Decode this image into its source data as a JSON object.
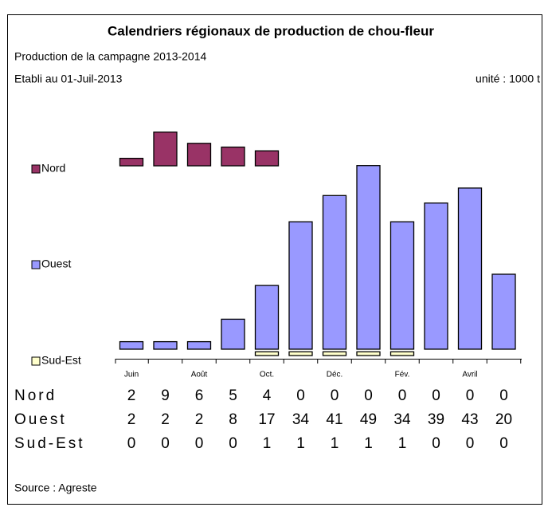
{
  "chart_data": {
    "type": "bar",
    "title": "Calendriers régionaux de production de chou-fleur",
    "subtitle": "Production de la campagne 2013-2014",
    "date_note": "Etabli au 01-Juil-2013",
    "unit_note": "unité : 1000 t",
    "source": "Source : Agreste",
    "categories": [
      "Juin",
      null,
      "Août",
      null,
      "Oct.",
      null,
      "Déc.",
      null,
      "Fév.",
      null,
      "Avril",
      null
    ],
    "series": [
      {
        "name": "Nord",
        "color": "#993366",
        "values": [
          2,
          9,
          6,
          5,
          4,
          0,
          0,
          0,
          0,
          0,
          0,
          0
        ]
      },
      {
        "name": "Ouest",
        "color": "#9999ff",
        "values": [
          2,
          2,
          2,
          8,
          17,
          34,
          41,
          49,
          34,
          39,
          43,
          20
        ]
      },
      {
        "name": "Sud-Est",
        "color": "#ffffcc",
        "values": [
          0,
          0,
          0,
          0,
          1,
          1,
          1,
          1,
          1,
          0,
          0,
          0
        ]
      }
    ]
  }
}
